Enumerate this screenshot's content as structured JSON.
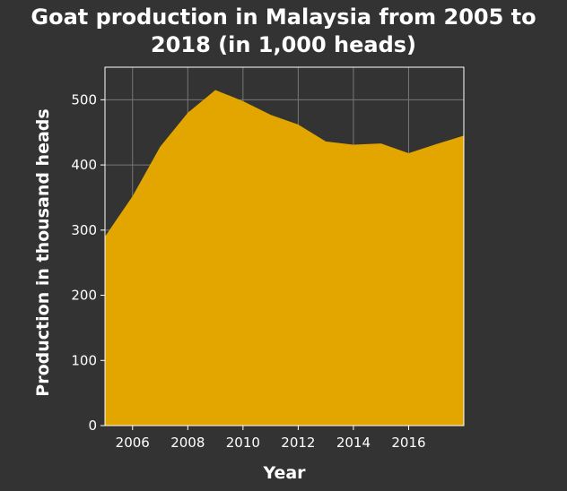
{
  "chart_data": {
    "type": "area",
    "title": "Goat production in Malaysia from 2005 to 2018 (in 1,000 heads)",
    "xlabel": "Year",
    "ylabel": "Production in thousand heads",
    "x": [
      2005,
      2006,
      2007,
      2008,
      2009,
      2010,
      2011,
      2012,
      2013,
      2014,
      2015,
      2016,
      2017,
      2018
    ],
    "values": [
      290,
      352,
      428,
      480,
      515,
      498,
      477,
      462,
      436,
      431,
      433,
      418,
      432,
      445
    ],
    "xlim": [
      2005,
      2018
    ],
    "ylim": [
      0,
      550
    ],
    "xticks": [
      2006,
      2008,
      2010,
      2012,
      2014,
      2016
    ],
    "yticks": [
      0,
      100,
      200,
      300,
      400,
      500
    ],
    "grid": true,
    "colors": {
      "background": "#333333",
      "plot_background": "#333333",
      "area_fill": "#e3a600",
      "grid": "#777777",
      "text": "#ffffff"
    }
  }
}
